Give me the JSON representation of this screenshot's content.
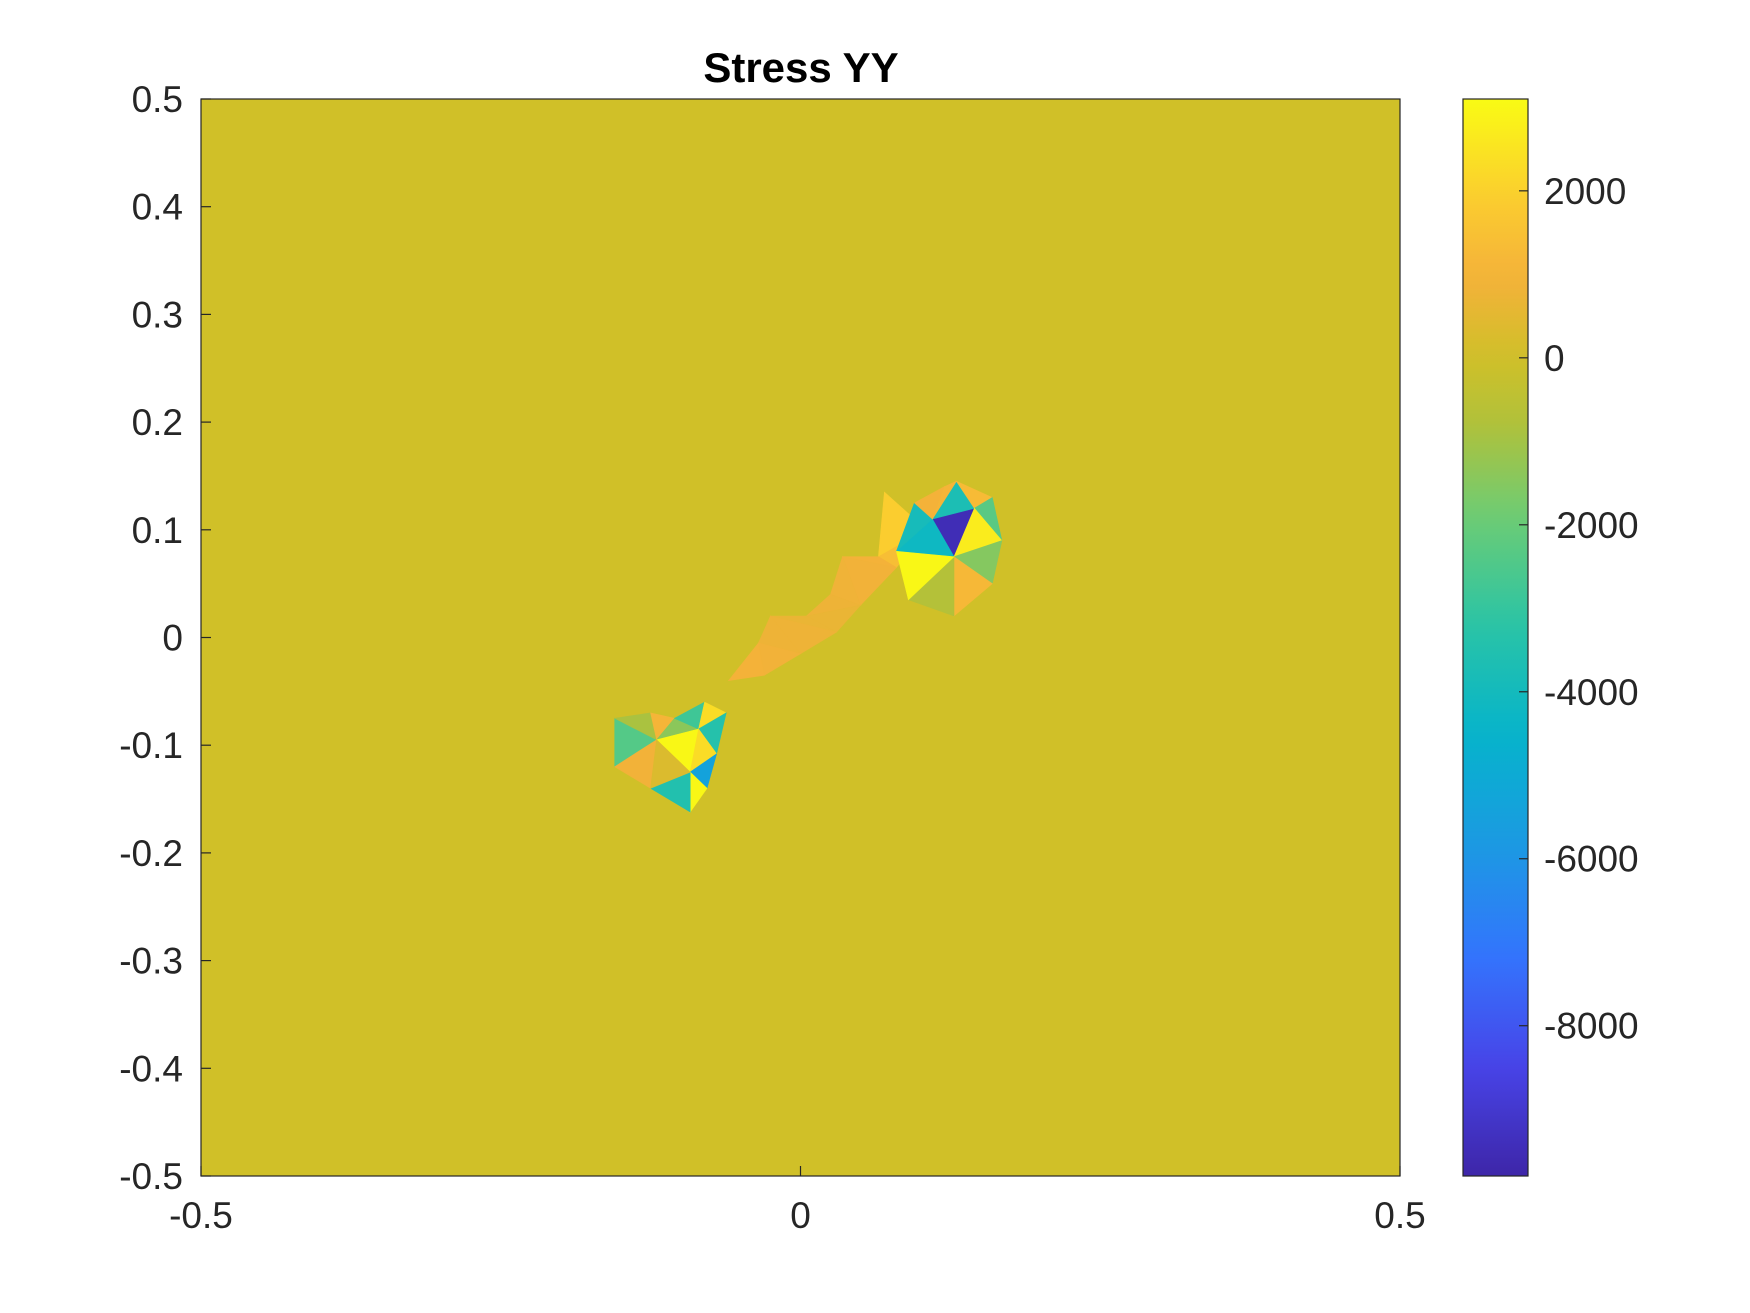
{
  "chart_data": {
    "type": "heatmap",
    "title": "Stress YY",
    "xlabel": "",
    "ylabel": "",
    "xlim": [
      -0.5,
      0.5
    ],
    "ylim": [
      -0.5,
      0.5
    ],
    "x_ticks": [
      -0.5,
      0,
      0.5
    ],
    "x_tick_labels": [
      "-0.5",
      "0",
      "0.5"
    ],
    "y_ticks": [
      0.5,
      0.4,
      0.3,
      0.2,
      0.1,
      0,
      -0.1,
      -0.2,
      -0.3,
      -0.4,
      -0.5
    ],
    "y_tick_labels": [
      "0.5",
      "0.4",
      "0.3",
      "0.2",
      "0.1",
      "0",
      "-0.1",
      "-0.2",
      "-0.3",
      "-0.4",
      "-0.5"
    ],
    "background_value": 0,
    "colormap": "parula",
    "colorbar": {
      "clim": [
        -9800,
        3100
      ],
      "ticks": [
        2000,
        0,
        -2000,
        -4000,
        -6000,
        -8000
      ],
      "tick_labels": [
        "2000",
        "0",
        "-2000",
        "-4000",
        "-6000",
        "-8000"
      ],
      "placement": "right"
    },
    "elements": [
      {
        "points": [
          [
            0.07,
            0.135
          ],
          [
            0.105,
            0.1
          ],
          [
            0.065,
            0.075
          ]
        ],
        "value": 1900
      },
      {
        "points": [
          [
            0.065,
            0.075
          ],
          [
            0.105,
            0.1
          ],
          [
            0.08,
            0.065
          ]
        ],
        "value": 1400
      },
      {
        "points": [
          [
            0.035,
            0.075
          ],
          [
            0.065,
            0.075
          ],
          [
            0.08,
            0.065
          ]
        ],
        "value": 1000
      },
      {
        "points": [
          [
            0.035,
            0.075
          ],
          [
            0.08,
            0.065
          ],
          [
            0.05,
            0.03
          ]
        ],
        "value": 900
      },
      {
        "points": [
          [
            0.025,
            0.04
          ],
          [
            0.035,
            0.075
          ],
          [
            0.05,
            0.03
          ]
        ],
        "value": 850
      },
      {
        "points": [
          [
            0.005,
            0.02
          ],
          [
            0.025,
            0.04
          ],
          [
            0.05,
            0.03
          ]
        ],
        "value": 800
      },
      {
        "points": [
          [
            0.005,
            0.02
          ],
          [
            0.05,
            0.03
          ],
          [
            0.03,
            0.005
          ]
        ],
        "value": 700
      },
      {
        "points": [
          [
            -0.025,
            0.02
          ],
          [
            0.005,
            0.02
          ],
          [
            0.03,
            0.005
          ]
        ],
        "value": 700
      },
      {
        "points": [
          [
            -0.025,
            0.02
          ],
          [
            0.03,
            0.005
          ],
          [
            0.0,
            -0.015
          ]
        ],
        "value": 800
      },
      {
        "points": [
          [
            -0.035,
            -0.005
          ],
          [
            -0.025,
            0.02
          ],
          [
            0.0,
            -0.015
          ]
        ],
        "value": 800
      },
      {
        "points": [
          [
            -0.06,
            -0.04
          ],
          [
            -0.035,
            -0.005
          ],
          [
            -0.03,
            -0.035
          ]
        ],
        "value": 1000
      },
      {
        "points": [
          [
            -0.035,
            -0.005
          ],
          [
            0.0,
            -0.015
          ],
          [
            -0.03,
            -0.035
          ]
        ],
        "value": 900
      },
      {
        "points": [
          [
            0.11,
            0.11
          ],
          [
            0.145,
            0.12
          ],
          [
            0.128,
            0.075
          ]
        ],
        "value": -9500
      },
      {
        "points": [
          [
            0.11,
            0.11
          ],
          [
            0.128,
            0.075
          ],
          [
            0.08,
            0.08
          ]
        ],
        "value": -4200
      },
      {
        "points": [
          [
            0.11,
            0.11
          ],
          [
            0.08,
            0.08
          ],
          [
            0.095,
            0.125
          ]
        ],
        "value": -3900
      },
      {
        "points": [
          [
            0.11,
            0.11
          ],
          [
            0.13,
            0.145
          ],
          [
            0.145,
            0.12
          ]
        ],
        "value": -3700
      },
      {
        "points": [
          [
            0.095,
            0.125
          ],
          [
            0.11,
            0.11
          ],
          [
            0.12,
            0.14
          ]
        ],
        "value": 1000
      },
      {
        "points": [
          [
            0.12,
            0.14
          ],
          [
            0.13,
            0.145
          ],
          [
            0.11,
            0.11
          ]
        ],
        "value": 1100
      },
      {
        "points": [
          [
            0.13,
            0.145
          ],
          [
            0.16,
            0.13
          ],
          [
            0.145,
            0.12
          ]
        ],
        "value": 1300
      },
      {
        "points": [
          [
            0.145,
            0.12
          ],
          [
            0.16,
            0.13
          ],
          [
            0.168,
            0.09
          ]
        ],
        "value": -2300
      },
      {
        "points": [
          [
            0.145,
            0.12
          ],
          [
            0.168,
            0.09
          ],
          [
            0.128,
            0.075
          ]
        ],
        "value": 2700
      },
      {
        "points": [
          [
            0.128,
            0.075
          ],
          [
            0.168,
            0.09
          ],
          [
            0.16,
            0.05
          ]
        ],
        "value": -1500
      },
      {
        "points": [
          [
            0.128,
            0.075
          ],
          [
            0.16,
            0.05
          ],
          [
            0.128,
            0.02
          ]
        ],
        "value": 1200
      },
      {
        "points": [
          [
            0.128,
            0.075
          ],
          [
            0.128,
            0.02
          ],
          [
            0.09,
            0.035
          ]
        ],
        "value": -700
      },
      {
        "points": [
          [
            0.08,
            0.08
          ],
          [
            0.128,
            0.075
          ],
          [
            0.09,
            0.035
          ]
        ],
        "value": 3000
      },
      {
        "points": [
          [
            -0.155,
            -0.075
          ],
          [
            -0.12,
            -0.095
          ],
          [
            -0.155,
            -0.12
          ]
        ],
        "value": -2400
      },
      {
        "points": [
          [
            -0.155,
            -0.075
          ],
          [
            -0.125,
            -0.07
          ],
          [
            -0.12,
            -0.095
          ]
        ],
        "value": -900
      },
      {
        "points": [
          [
            -0.125,
            -0.07
          ],
          [
            -0.105,
            -0.075
          ],
          [
            -0.12,
            -0.095
          ]
        ],
        "value": 1100
      },
      {
        "points": [
          [
            -0.105,
            -0.075
          ],
          [
            -0.085,
            -0.085
          ],
          [
            -0.12,
            -0.095
          ]
        ],
        "value": -1400
      },
      {
        "points": [
          [
            -0.105,
            -0.075
          ],
          [
            -0.08,
            -0.06
          ],
          [
            -0.085,
            -0.085
          ]
        ],
        "value": -2800
      },
      {
        "points": [
          [
            -0.08,
            -0.06
          ],
          [
            -0.062,
            -0.07
          ],
          [
            -0.085,
            -0.085
          ]
        ],
        "value": 2300
      },
      {
        "points": [
          [
            -0.062,
            -0.07
          ],
          [
            -0.07,
            -0.108
          ],
          [
            -0.085,
            -0.085
          ]
        ],
        "value": -3400
      },
      {
        "points": [
          [
            -0.12,
            -0.095
          ],
          [
            -0.085,
            -0.085
          ],
          [
            -0.092,
            -0.125
          ]
        ],
        "value": 3000
      },
      {
        "points": [
          [
            -0.085,
            -0.085
          ],
          [
            -0.07,
            -0.108
          ],
          [
            -0.092,
            -0.125
          ]
        ],
        "value": 2300
      },
      {
        "points": [
          [
            -0.07,
            -0.108
          ],
          [
            -0.078,
            -0.14
          ],
          [
            -0.092,
            -0.125
          ]
        ],
        "value": -5400
      },
      {
        "points": [
          [
            -0.092,
            -0.125
          ],
          [
            -0.078,
            -0.14
          ],
          [
            -0.092,
            -0.162
          ]
        ],
        "value": 3000
      },
      {
        "points": [
          [
            -0.125,
            -0.14
          ],
          [
            -0.092,
            -0.125
          ],
          [
            -0.092,
            -0.162
          ]
        ],
        "value": -3500
      },
      {
        "points": [
          [
            -0.155,
            -0.12
          ],
          [
            -0.12,
            -0.095
          ],
          [
            -0.125,
            -0.14
          ]
        ],
        "value": 900
      },
      {
        "points": [
          [
            -0.12,
            -0.095
          ],
          [
            -0.092,
            -0.125
          ],
          [
            -0.125,
            -0.14
          ]
        ],
        "value": 300
      }
    ]
  }
}
